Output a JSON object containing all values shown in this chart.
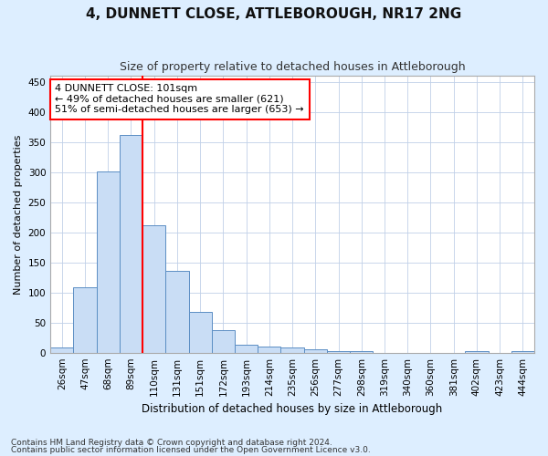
{
  "title": "4, DUNNETT CLOSE, ATTLEBOROUGH, NR17 2NG",
  "subtitle": "Size of property relative to detached houses in Attleborough",
  "xlabel": "Distribution of detached houses by size in Attleborough",
  "ylabel": "Number of detached properties",
  "footnote1": "Contains HM Land Registry data © Crown copyright and database right 2024.",
  "footnote2": "Contains public sector information licensed under the Open Government Licence v3.0.",
  "categories": [
    "26sqm",
    "47sqm",
    "68sqm",
    "89sqm",
    "110sqm",
    "131sqm",
    "151sqm",
    "172sqm",
    "193sqm",
    "214sqm",
    "235sqm",
    "256sqm",
    "277sqm",
    "298sqm",
    "319sqm",
    "340sqm",
    "360sqm",
    "381sqm",
    "402sqm",
    "423sqm",
    "444sqm"
  ],
  "values": [
    8,
    108,
    301,
    362,
    212,
    136,
    68,
    38,
    13,
    10,
    9,
    6,
    2,
    3,
    0,
    0,
    0,
    0,
    3,
    0,
    3
  ],
  "bar_color": "#c9ddf5",
  "bar_edge_color": "#5b8ec4",
  "vline_x": 3.5,
  "vline_color": "red",
  "annotation_line1": "4 DUNNETT CLOSE: 101sqm",
  "annotation_line2": "← 49% of detached houses are smaller (621)",
  "annotation_line3": "51% of semi-detached houses are larger (653) →",
  "annotation_box_color": "white",
  "annotation_box_edge": "red",
  "ylim": [
    0,
    460
  ],
  "yticks": [
    0,
    50,
    100,
    150,
    200,
    250,
    300,
    350,
    400,
    450
  ],
  "background_color": "#ddeeff",
  "plot_bg_color": "#ffffff",
  "grid_color": "#c0d0e8",
  "title_fontsize": 11,
  "subtitle_fontsize": 9,
  "xlabel_fontsize": 8.5,
  "ylabel_fontsize": 8,
  "tick_fontsize": 7.5,
  "annot_fontsize": 8,
  "footnote_fontsize": 6.5
}
